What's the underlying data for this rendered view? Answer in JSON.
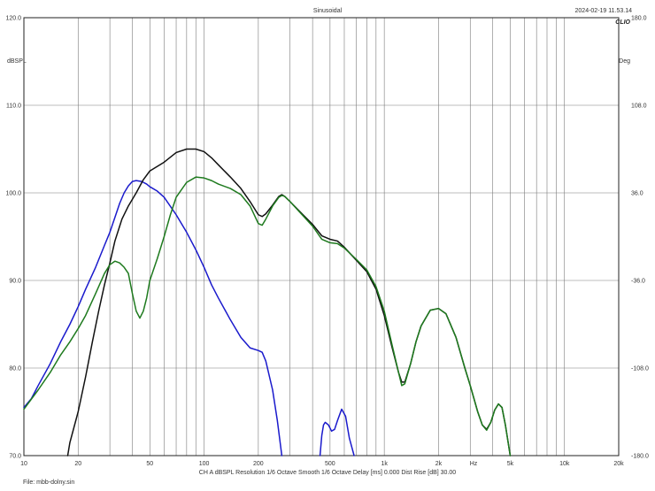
{
  "header": {
    "title": "Sinusoidal",
    "timestamp": "2024-02-19 11.53.14",
    "brand": "CLIO"
  },
  "footer": {
    "settings": "CH A   dBSPL   Resolution 1/6 Octave   Smooth 1/6 Octave   Delay [ms] 0.000   Dist Rise [dB] 30.00",
    "file": "File: mbb-dolny.sin"
  },
  "chart_data": {
    "type": "line",
    "xscale": "log",
    "xlim": [
      10,
      20000
    ],
    "ylim": [
      70,
      120
    ],
    "y2lim": [
      -180,
      180
    ],
    "grid": true,
    "ylabel": "dBSPL",
    "y2label": "Deg",
    "xlabel": "Hz",
    "xticks": [
      {
        "v": 10,
        "t": "10"
      },
      {
        "v": 20,
        "t": "20"
      },
      {
        "v": 50,
        "t": "50"
      },
      {
        "v": 100,
        "t": "100"
      },
      {
        "v": 200,
        "t": "200"
      },
      {
        "v": 500,
        "t": "500"
      },
      {
        "v": 1000,
        "t": "1k"
      },
      {
        "v": 2000,
        "t": "2k"
      },
      {
        "v": 5000,
        "t": "5k"
      },
      {
        "v": 10000,
        "t": "10k"
      },
      {
        "v": 20000,
        "t": "20k"
      }
    ],
    "yticks": [
      {
        "v": 120,
        "t": "120.0"
      },
      {
        "v": 110,
        "t": "110.0"
      },
      {
        "v": 100,
        "t": "100.0"
      },
      {
        "v": 90,
        "t": "90.0"
      },
      {
        "v": 80,
        "t": "80.0"
      },
      {
        "v": 70,
        "t": "70.0"
      }
    ],
    "y2ticks": [
      {
        "v": 120,
        "t": "180.0"
      },
      {
        "v": 110,
        "t": "108.0"
      },
      {
        "v": 100,
        "t": "36.0"
      },
      {
        "v": 90,
        "t": "-36.0"
      },
      {
        "v": 80,
        "t": "-108.0"
      },
      {
        "v": 70,
        "t": "-180.0"
      }
    ],
    "series": [
      {
        "color": "#1a1acc",
        "segments": [
          [
            [
              10,
              75.5
            ],
            [
              11,
              76.5
            ],
            [
              12,
              78
            ],
            [
              14,
              80.5
            ],
            [
              16,
              83
            ],
            [
              18,
              85
            ],
            [
              20,
              87
            ],
            [
              22,
              89
            ],
            [
              25,
              91.5
            ],
            [
              28,
              94
            ],
            [
              30,
              95.5
            ],
            [
              32,
              97.2
            ],
            [
              34,
              98.8
            ],
            [
              36,
              100
            ],
            [
              38,
              100.8
            ],
            [
              40,
              101.3
            ],
            [
              42,
              101.4
            ],
            [
              45,
              101.3
            ],
            [
              48,
              101
            ],
            [
              50,
              100.7
            ],
            [
              55,
              100.2
            ],
            [
              60,
              99.5
            ],
            [
              70,
              97.5
            ],
            [
              80,
              95.5
            ],
            [
              90,
              93.5
            ],
            [
              100,
              91.5
            ],
            [
              110,
              89.5
            ],
            [
              120,
              88
            ],
            [
              140,
              85.5
            ],
            [
              160,
              83.5
            ],
            [
              180,
              82.3
            ],
            [
              200,
              82
            ],
            [
              210,
              81.8
            ],
            [
              220,
              80.8
            ],
            [
              240,
              77.5
            ],
            [
              255,
              74
            ],
            [
              270,
              70
            ]
          ],
          [
            [
              440,
              70
            ],
            [
              450,
              72.3
            ],
            [
              460,
              73.5
            ],
            [
              470,
              73.8
            ],
            [
              490,
              73.5
            ],
            [
              510,
              72.8
            ],
            [
              530,
              73
            ],
            [
              550,
              74
            ],
            [
              580,
              75.3
            ],
            [
              610,
              74.5
            ],
            [
              640,
              72
            ],
            [
              680,
              70
            ]
          ]
        ]
      },
      {
        "color": "#111111",
        "segments": [
          [
            [
              17.5,
              70
            ],
            [
              18,
              71.5
            ],
            [
              20,
              75
            ],
            [
              22,
              79
            ],
            [
              24,
              83
            ],
            [
              26,
              86.5
            ],
            [
              28,
              89.5
            ],
            [
              30,
              92
            ],
            [
              32,
              94.5
            ],
            [
              35,
              97
            ],
            [
              38,
              98.5
            ],
            [
              42,
              100
            ],
            [
              46,
              101.5
            ],
            [
              50,
              102.5
            ],
            [
              60,
              103.5
            ],
            [
              70,
              104.6
            ],
            [
              80,
              105
            ],
            [
              90,
              105
            ],
            [
              100,
              104.7
            ],
            [
              110,
              104
            ],
            [
              120,
              103.2
            ],
            [
              140,
              101.8
            ],
            [
              160,
              100.5
            ],
            [
              180,
              99
            ],
            [
              200,
              97.5
            ],
            [
              210,
              97.3
            ],
            [
              220,
              97.6
            ],
            [
              240,
              98.6
            ],
            [
              260,
              99.6
            ],
            [
              270,
              99.8
            ],
            [
              280,
              99.6
            ],
            [
              300,
              99
            ],
            [
              350,
              97.6
            ],
            [
              400,
              96.4
            ],
            [
              450,
              95.1
            ],
            [
              500,
              94.7
            ],
            [
              550,
              94.5
            ],
            [
              600,
              93.8
            ],
            [
              700,
              92.3
            ],
            [
              800,
              91
            ],
            [
              900,
              89
            ],
            [
              1000,
              86
            ],
            [
              1100,
              82.5
            ],
            [
              1200,
              79.5
            ],
            [
              1250,
              78.4
            ],
            [
              1300,
              78.4
            ],
            [
              1400,
              80.5
            ],
            [
              1500,
              83
            ],
            [
              1600,
              84.8
            ],
            [
              1800,
              86.6
            ],
            [
              2000,
              86.8
            ],
            [
              2200,
              86.2
            ],
            [
              2500,
              83.5
            ],
            [
              2800,
              80
            ],
            [
              3000,
              78
            ],
            [
              3300,
              75
            ],
            [
              3500,
              73.5
            ],
            [
              3700,
              73
            ],
            [
              3900,
              73.8
            ],
            [
              4100,
              75.2
            ],
            [
              4300,
              75.9
            ],
            [
              4500,
              75.5
            ],
            [
              4700,
              73.5
            ],
            [
              5000,
              70
            ]
          ]
        ]
      },
      {
        "color": "#1e7a1e",
        "segments": [
          [
            [
              10,
              75.3
            ],
            [
              12,
              77.5
            ],
            [
              14,
              79.5
            ],
            [
              16,
              81.5
            ],
            [
              18,
              83
            ],
            [
              20,
              84.5
            ],
            [
              22,
              86
            ],
            [
              25,
              88.5
            ],
            [
              28,
              90.8
            ],
            [
              30,
              91.8
            ],
            [
              32,
              92.2
            ],
            [
              34,
              92
            ],
            [
              36,
              91.5
            ],
            [
              38,
              90.8
            ],
            [
              40,
              88.5
            ],
            [
              42,
              86.5
            ],
            [
              44,
              85.7
            ],
            [
              46,
              86.5
            ],
            [
              48,
              88
            ],
            [
              50,
              90
            ],
            [
              55,
              92.5
            ],
            [
              60,
              95
            ],
            [
              65,
              97.5
            ],
            [
              70,
              99.5
            ],
            [
              80,
              101.2
            ],
            [
              90,
              101.8
            ],
            [
              100,
              101.7
            ],
            [
              110,
              101.4
            ],
            [
              120,
              101
            ],
            [
              140,
              100.5
            ],
            [
              160,
              99.8
            ],
            [
              180,
              98.5
            ],
            [
              200,
              96.5
            ],
            [
              210,
              96.3
            ],
            [
              220,
              97
            ],
            [
              240,
              98.5
            ],
            [
              260,
              99.5
            ],
            [
              270,
              99.7
            ],
            [
              280,
              99.6
            ],
            [
              300,
              99
            ],
            [
              350,
              97.5
            ],
            [
              400,
              96.2
            ],
            [
              450,
              94.7
            ],
            [
              500,
              94.3
            ],
            [
              550,
              94.2
            ],
            [
              600,
              93.7
            ],
            [
              700,
              92.4
            ],
            [
              800,
              91.2
            ],
            [
              900,
              89.3
            ],
            [
              1000,
              86.5
            ],
            [
              1100,
              82.8
            ],
            [
              1200,
              79.5
            ],
            [
              1250,
              78
            ],
            [
              1300,
              78.2
            ],
            [
              1400,
              80.5
            ],
            [
              1500,
              83
            ],
            [
              1600,
              84.8
            ],
            [
              1800,
              86.6
            ],
            [
              2000,
              86.8
            ],
            [
              2200,
              86.2
            ],
            [
              2500,
              83.5
            ],
            [
              2800,
              80
            ],
            [
              3000,
              78
            ],
            [
              3300,
              75
            ],
            [
              3500,
              73.5
            ],
            [
              3700,
              72.9
            ],
            [
              3900,
              73.8
            ],
            [
              4100,
              75.2
            ],
            [
              4300,
              75.9
            ],
            [
              4500,
              75.5
            ],
            [
              4700,
              73.5
            ],
            [
              5000,
              70
            ]
          ]
        ]
      }
    ]
  }
}
